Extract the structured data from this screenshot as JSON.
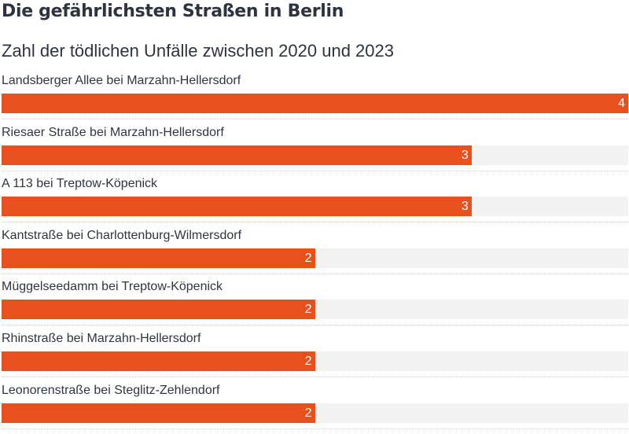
{
  "header": {
    "title": "Die gefährlichsten Straßen in Berlin",
    "subtitle": "Zahl der tödlichen Unfälle zwischen 2020 und 2023"
  },
  "colors": {
    "bar": "#e8501e",
    "track": "#f2f2f2"
  },
  "chart_data": {
    "type": "bar",
    "orientation": "horizontal",
    "title": "Die gefährlichsten Straßen in Berlin",
    "subtitle": "Zahl der tödlichen Unfälle zwischen 2020 und 2023",
    "categories": [
      "Landsberger Allee bei Marzahn-Hellersdorf",
      "Riesaer Straße bei Marzahn-Hellersdorf",
      "A 113 bei Treptow-Köpenick",
      "Kantstraße bei Charlottenburg-Wilmersdorf",
      "Müggelseedamm bei Treptow-Köpenick",
      "Rhinstraße bei Marzahn-Hellersdorf",
      "Leonorenstraße bei Steglitz-Zehlendorf"
    ],
    "values": [
      4,
      3,
      3,
      2,
      2,
      2,
      2
    ],
    "xlim": [
      0,
      4
    ]
  }
}
